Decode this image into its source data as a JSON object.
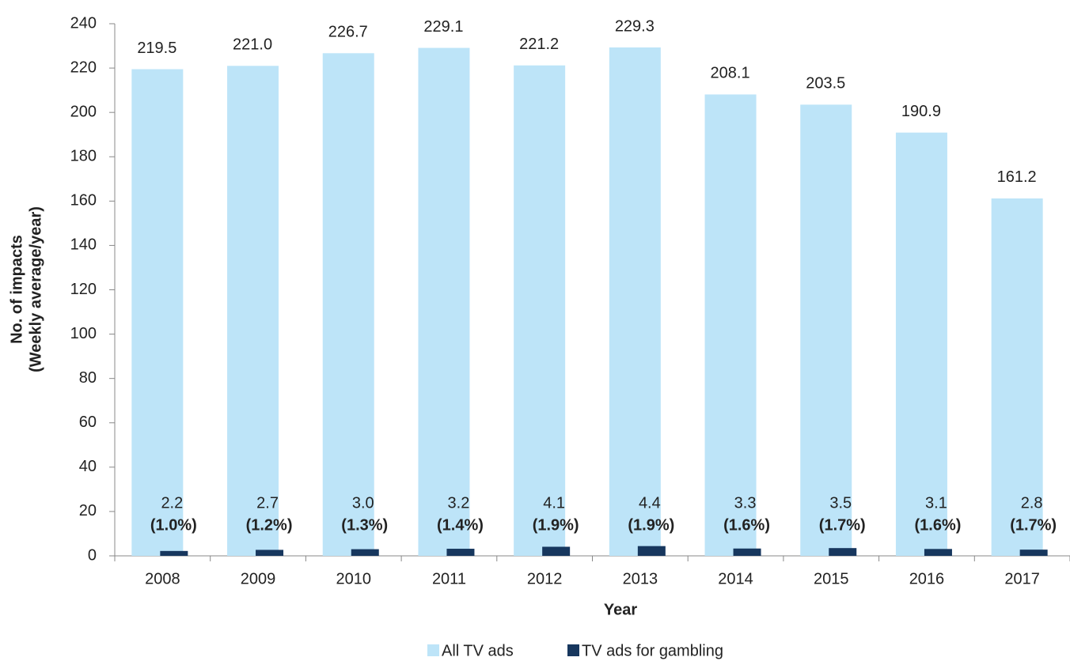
{
  "chart_data": {
    "type": "bar",
    "xlabel": "Year",
    "ylabel": [
      "No. of impacts",
      "(Weekly average/year)"
    ],
    "categories": [
      "2008",
      "2009",
      "2010",
      "2011",
      "2012",
      "2013",
      "2014",
      "2015",
      "2016",
      "2017"
    ],
    "series": [
      {
        "name": "All TV ads",
        "color": "#bde4f8",
        "values": [
          219.5,
          221.0,
          226.7,
          229.1,
          221.2,
          229.3,
          208.1,
          203.5,
          190.9,
          161.2
        ],
        "value_labels": [
          "219.5",
          "221.0",
          "226.7",
          "229.1",
          "221.2",
          "229.3",
          "208.1",
          "203.5",
          "190.9",
          "161.2"
        ]
      },
      {
        "name": "TV ads for gambling",
        "color": "#17375e",
        "values": [
          2.2,
          2.7,
          3.0,
          3.2,
          4.1,
          4.4,
          3.3,
          3.5,
          3.1,
          2.8
        ],
        "value_labels": [
          "2.2",
          "2.7",
          "3.0",
          "3.2",
          "4.1",
          "4.4",
          "3.3",
          "3.5",
          "3.1",
          "2.8"
        ]
      }
    ],
    "share_labels": [
      "(1.0%)",
      "(1.2%)",
      "(1.3%)",
      "(1.4%)",
      "(1.9%)",
      "(1.9%)",
      "(1.6%)",
      "(1.7%)",
      "(1.6%)",
      "(1.7%)"
    ],
    "ylim": [
      0,
      240
    ],
    "yticks": [
      0,
      20,
      40,
      60,
      80,
      100,
      120,
      140,
      160,
      180,
      200,
      220,
      240
    ],
    "grid": false,
    "legend": "bottom"
  }
}
